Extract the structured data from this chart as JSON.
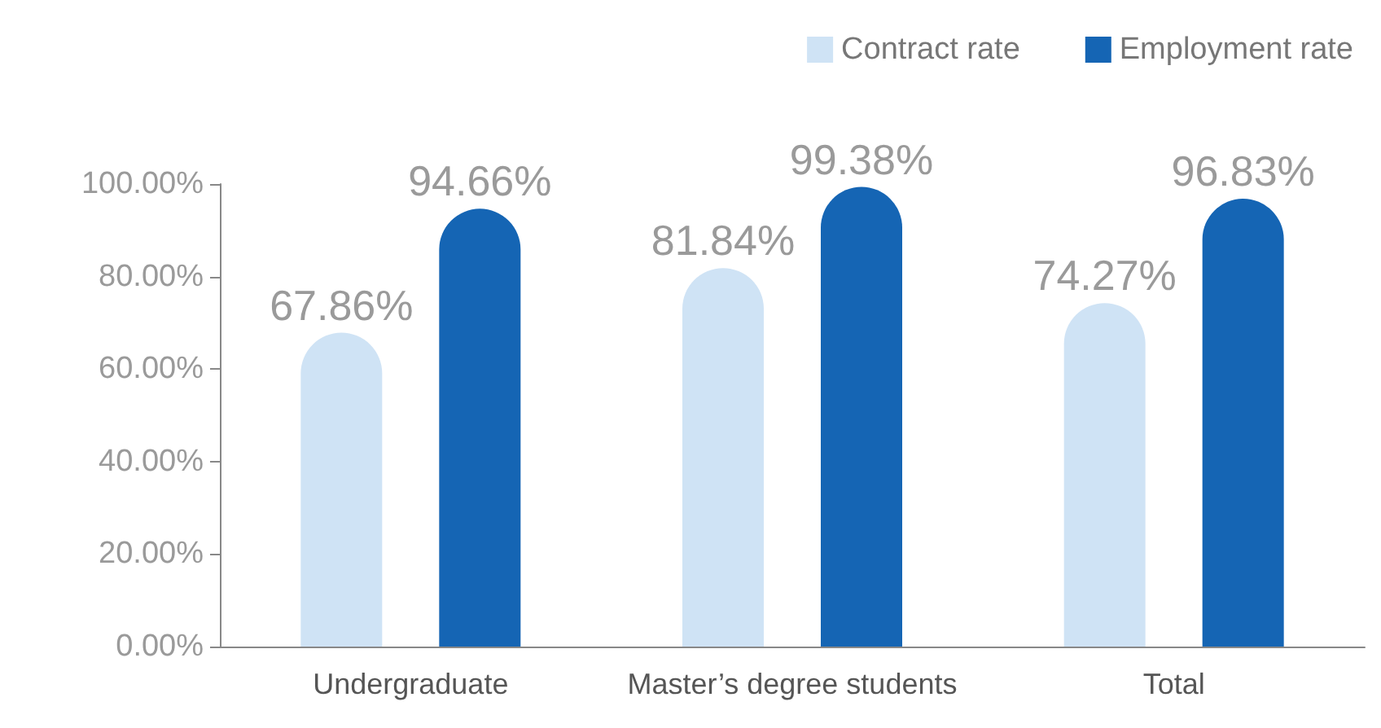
{
  "chart_data": {
    "type": "bar",
    "categories": [
      "Undergraduate",
      "Master’s degree students",
      "Total"
    ],
    "series": [
      {
        "name": "Contract rate",
        "color": "#cfe3f5",
        "values": [
          67.86,
          81.84,
          74.27
        ],
        "value_labels": [
          "67.86%",
          "81.84%",
          "74.27%"
        ]
      },
      {
        "name": "Employment rate",
        "color": "#1565b4",
        "values": [
          94.66,
          99.38,
          96.83
        ],
        "value_labels": [
          "94.66%",
          "99.38%",
          "96.83%"
        ]
      }
    ],
    "ylim": [
      0,
      100
    ],
    "yticks": [
      {
        "value": 0,
        "label": "0.00%"
      },
      {
        "value": 20,
        "label": "20.00%"
      },
      {
        "value": 40,
        "label": "40.00%"
      },
      {
        "value": 60,
        "label": "60.00%"
      },
      {
        "value": 80,
        "label": "80.00%"
      },
      {
        "value": 100,
        "label": "100.00%"
      }
    ],
    "grid": false,
    "legend": "top right"
  }
}
